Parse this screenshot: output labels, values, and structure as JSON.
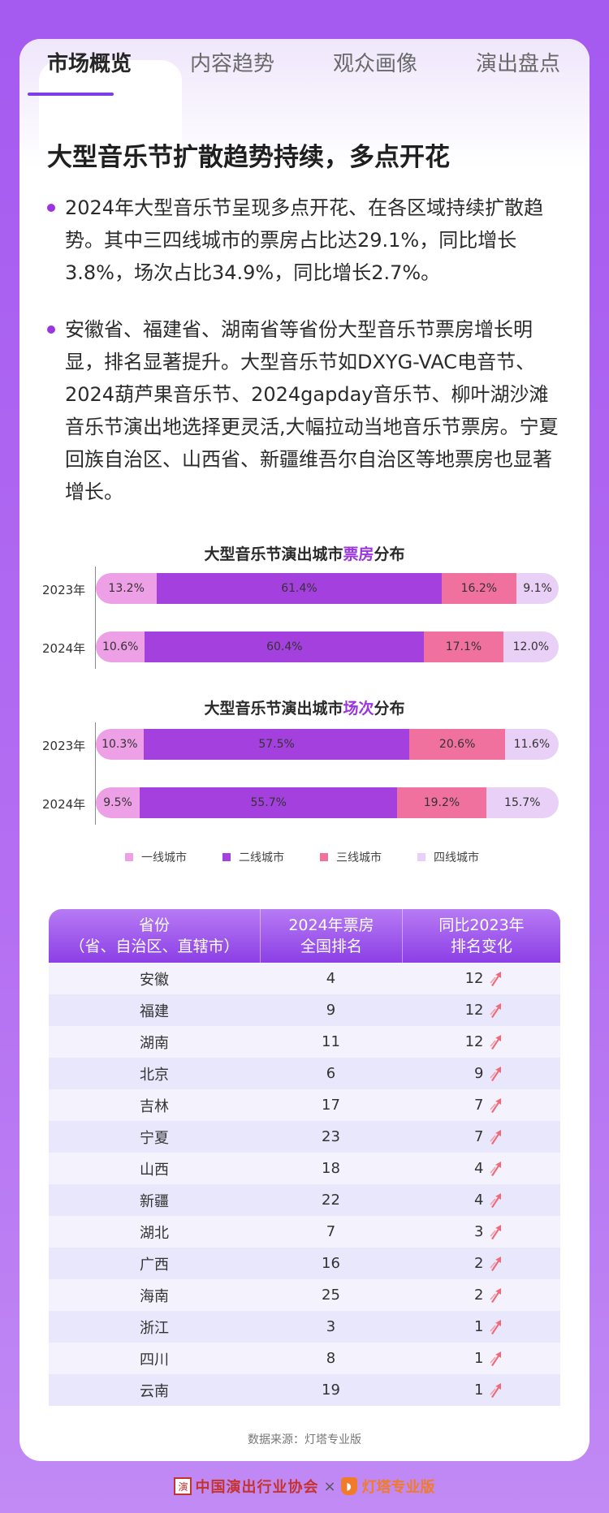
{
  "tabs": [
    "市场概览",
    "内容趋势",
    "观众画像",
    "演出盘点"
  ],
  "heading": "大型音乐节扩散趋势持续，多点开花",
  "paragraphs": [
    "2024年大型音乐节呈现多点开花、在各区域持续扩散趋势。其中三四线城市的票房占比达29.1%，同比增长3.8%，场次占比34.9%，同比增长2.7%。",
    "安徽省、福建省、湖南省等省份大型音乐节票房增长明显，排名显著提升。大型音乐节如DXYG-VAC电音节、2024葫芦果音乐节、2024gapday音乐节、柳叶湖沙滩音乐节演出地选择更灵活,大幅拉动当地音乐节票房。宁夏回族自治区、山西省、新疆维吾尔自治区等地票房也显著增长。"
  ],
  "chart_data": [
    {
      "type": "bar",
      "stacked": true,
      "orientation": "horizontal",
      "title_prefix": "大型音乐节演出城市",
      "title_highlight": "票房",
      "title_suffix": "分布",
      "categories": [
        "2023年",
        "2024年"
      ],
      "series": [
        {
          "name": "一线城市",
          "values": [
            13.2,
            10.6
          ]
        },
        {
          "name": "二线城市",
          "values": [
            61.4,
            60.4
          ]
        },
        {
          "name": "三线城市",
          "values": [
            16.2,
            17.1
          ]
        },
        {
          "name": "四线城市",
          "values": [
            9.1,
            12.0
          ]
        }
      ],
      "labels": [
        [
          "13.2%",
          "61.4%",
          "16.2%",
          "9.1%"
        ],
        [
          "10.6%",
          "60.4%",
          "17.1%",
          "12.0%"
        ]
      ]
    },
    {
      "type": "bar",
      "stacked": true,
      "orientation": "horizontal",
      "title_prefix": "大型音乐节演出城市",
      "title_highlight": "场次",
      "title_suffix": "分布",
      "categories": [
        "2023年",
        "2024年"
      ],
      "series": [
        {
          "name": "一线城市",
          "values": [
            10.3,
            9.5
          ]
        },
        {
          "name": "二线城市",
          "values": [
            57.5,
            55.7
          ]
        },
        {
          "name": "三线城市",
          "values": [
            20.6,
            19.2
          ]
        },
        {
          "name": "四线城市",
          "values": [
            11.6,
            15.7
          ]
        }
      ],
      "labels": [
        [
          "10.3%",
          "57.5%",
          "20.6%",
          "11.6%"
        ],
        [
          "9.5%",
          "55.7%",
          "19.2%",
          "15.7%"
        ]
      ]
    }
  ],
  "legend": [
    {
      "label": "一线城市",
      "color": "#eda0e6"
    },
    {
      "label": "二线城市",
      "color": "#a440de"
    },
    {
      "label": "三线城市",
      "color": "#f0709e"
    },
    {
      "label": "四线城市",
      "color": "#e8d0f6"
    }
  ],
  "table": {
    "headers": [
      [
        "省份",
        "（省、自治区、直辖市）"
      ],
      [
        "2024年票房",
        "全国排名"
      ],
      [
        "同比2023年",
        "排名变化"
      ]
    ],
    "rows": [
      {
        "province": "安徽",
        "rank": "4",
        "change": "12"
      },
      {
        "province": "福建",
        "rank": "9",
        "change": "12"
      },
      {
        "province": "湖南",
        "rank": "11",
        "change": "12"
      },
      {
        "province": "北京",
        "rank": "6",
        "change": "9"
      },
      {
        "province": "吉林",
        "rank": "17",
        "change": "7"
      },
      {
        "province": "宁夏",
        "rank": "23",
        "change": "7"
      },
      {
        "province": "山西",
        "rank": "18",
        "change": "4"
      },
      {
        "province": "新疆",
        "rank": "22",
        "change": "4"
      },
      {
        "province": "湖北",
        "rank": "7",
        "change": "3"
      },
      {
        "province": "广西",
        "rank": "16",
        "change": "2"
      },
      {
        "province": "海南",
        "rank": "25",
        "change": "2"
      },
      {
        "province": "浙江",
        "rank": "3",
        "change": "1"
      },
      {
        "province": "四川",
        "rank": "8",
        "change": "1"
      },
      {
        "province": "云南",
        "rank": "19",
        "change": "1"
      }
    ]
  },
  "source": "数据来源：灯塔专业版",
  "footer": {
    "org": "中国演出行业协会",
    "times": "×",
    "partner": "灯塔专业版"
  }
}
